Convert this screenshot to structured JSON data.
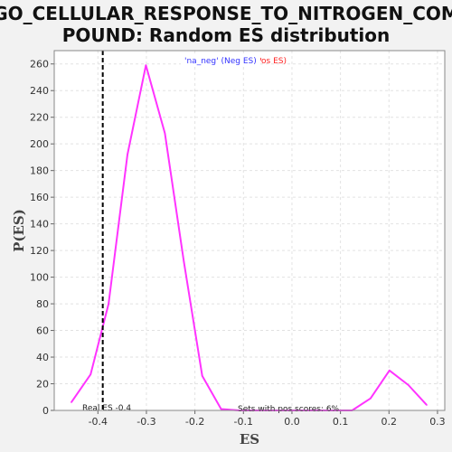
{
  "chart_data": {
    "type": "line",
    "title_line1": "GO_CELLULAR_RESPONSE_TO_NITROGEN_COM",
    "title_line2": "POUND: Random ES distribution",
    "xlabel": "ES",
    "ylabel": "P(ES)",
    "xlim": [
      -0.49,
      0.315
    ],
    "ylim": [
      0,
      270
    ],
    "x_ticks": [
      "-0.4",
      "-0.3",
      "-0.2",
      "-0.1",
      "0.0",
      "0.1",
      "0.2",
      "0.3"
    ],
    "y_ticks": [
      "0",
      "20",
      "40",
      "60",
      "80",
      "100",
      "120",
      "140",
      "160",
      "180",
      "200",
      "220",
      "240",
      "260"
    ],
    "grid": true,
    "legend": {
      "position": "top-center",
      "neg_label": "'na_neg' (Neg ES)",
      "pos_label": "'na_pos' (Pos ES)",
      "neg_color": "#3333ff",
      "pos_color": "#ff2222"
    },
    "series": [
      {
        "color": "#ff33ff",
        "x": [
          -0.455,
          -0.415,
          -0.378,
          -0.339,
          -0.301,
          -0.262,
          -0.223,
          -0.185,
          -0.146,
          -0.108,
          -0.069,
          -0.03,
          0.008,
          0.047,
          0.085,
          0.124,
          0.162,
          0.201,
          0.24,
          0.278
        ],
        "y": [
          6,
          27,
          80,
          192,
          259,
          208,
          112,
          26,
          1,
          0,
          0,
          0,
          0,
          0,
          0,
          0,
          9,
          30,
          19,
          4
        ]
      }
    ],
    "real_es": {
      "value": -0.39,
      "label": "Real ES -0.4"
    },
    "annotation": "Sets with pos scores: 6%"
  },
  "colors": {
    "plot_bg": "#ffffff",
    "grid": "#e2e2e2",
    "frame": "#888888",
    "page_bg": "#f2f2f2"
  }
}
